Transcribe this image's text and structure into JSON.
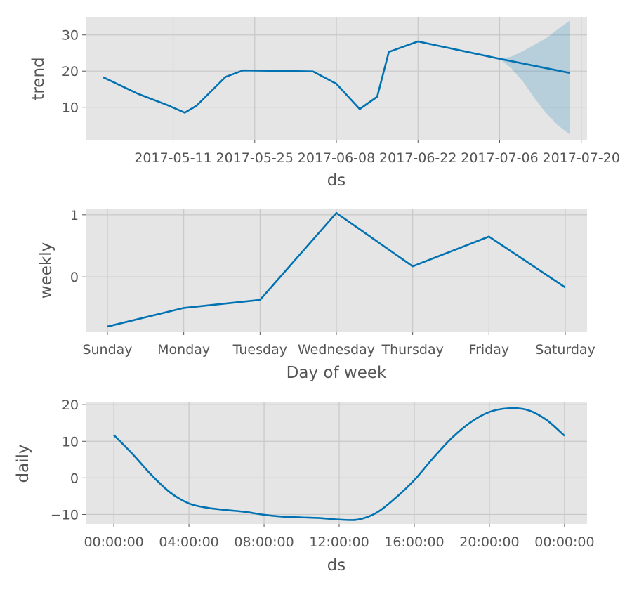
{
  "colors": {
    "line": "#0072b2",
    "band": "#0072b2",
    "panel": "#e5e5e5",
    "grid": "#c8c8c8",
    "text": "#555555"
  },
  "chart_data": [
    {
      "type": "line",
      "name": "trend-panel",
      "xlabel": "ds",
      "ylabel": "trend",
      "x_ticks": [
        "2017-05-11",
        "2017-05-25",
        "2017-06-08",
        "2017-06-22",
        "2017-07-06",
        "2017-07-20"
      ],
      "y_ticks": [
        10,
        20,
        30
      ],
      "xlim": [
        "2017-04-26",
        "2017-07-21"
      ],
      "ylim": [
        1,
        35
      ],
      "grid": true,
      "series": [
        {
          "x": [
            "2017-04-29",
            "2017-05-05",
            "2017-05-10",
            "2017-05-13",
            "2017-05-15",
            "2017-05-20",
            "2017-05-23",
            "2017-06-04",
            "2017-06-08",
            "2017-06-12",
            "2017-06-15",
            "2017-06-17",
            "2017-06-22",
            "2017-07-06",
            "2017-07-18"
          ],
          "y": [
            18.3,
            13.7,
            10.6,
            8.5,
            10.4,
            18.4,
            20.2,
            19.9,
            16.5,
            9.5,
            12.9,
            25.3,
            28.2,
            23.4,
            19.5
          ]
        }
      ],
      "uncertainty": {
        "x": [
          "2017-07-06",
          "2017-07-08",
          "2017-07-10",
          "2017-07-12",
          "2017-07-14",
          "2017-07-16",
          "2017-07-18"
        ],
        "upper": [
          23.4,
          24.0,
          25.5,
          27.3,
          29.1,
          31.6,
          33.9
        ],
        "lower": [
          23.4,
          20.8,
          17.1,
          12.5,
          8.3,
          5.0,
          2.5
        ]
      }
    },
    {
      "type": "line",
      "name": "weekly-panel",
      "xlabel": "Day of week",
      "ylabel": "weekly",
      "categories": [
        "Sunday",
        "Monday",
        "Tuesday",
        "Wednesday",
        "Thursday",
        "Friday",
        "Saturday"
      ],
      "y_ticks": [
        0,
        1
      ],
      "ylim": [
        -0.88,
        1.1
      ],
      "grid": true,
      "series": [
        {
          "values": [
            -0.8,
            -0.5,
            -0.37,
            1.03,
            0.17,
            0.65,
            -0.17
          ]
        }
      ]
    },
    {
      "type": "line",
      "name": "daily-panel",
      "xlabel": "ds",
      "ylabel": "daily",
      "x_ticks": [
        "00:00:00",
        "04:00:00",
        "08:00:00",
        "12:00:00",
        "16:00:00",
        "20:00:00",
        "00:00:00"
      ],
      "x_tick_hours": [
        0,
        4,
        8,
        12,
        16,
        20,
        24
      ],
      "y_ticks": [
        -10,
        0,
        10,
        20
      ],
      "xlim": [
        -1.5,
        25.2
      ],
      "ylim": [
        -12.6,
        20.8
      ],
      "grid": true,
      "series": [
        {
          "x": [
            0,
            1,
            2,
            3,
            4,
            5,
            6,
            7,
            8,
            9,
            10,
            11,
            12,
            13,
            14,
            15,
            16,
            17,
            18,
            19,
            20,
            21,
            22,
            23,
            24
          ],
          "y": [
            11.7,
            6.5,
            0.8,
            -4.0,
            -7.0,
            -8.2,
            -8.8,
            -9.3,
            -10.1,
            -10.6,
            -10.8,
            -11.0,
            -11.4,
            -11.4,
            -9.5,
            -5.5,
            -0.6,
            5.4,
            10.9,
            15.2,
            18.0,
            19.0,
            18.6,
            16.0,
            11.5
          ]
        }
      ]
    }
  ]
}
